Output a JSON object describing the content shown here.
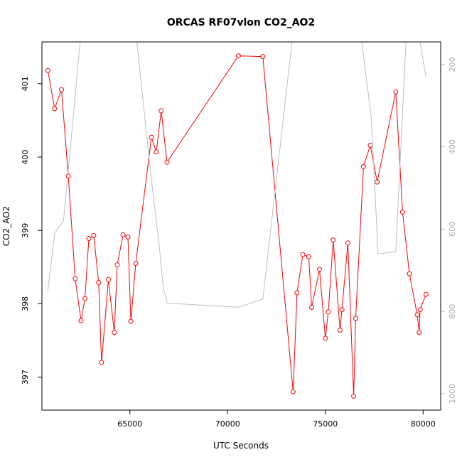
{
  "chart_data": {
    "type": "line",
    "title": "ORCAS RF07vlon CO2_AO2",
    "xlabel": "UTC Seconds",
    "ylabel": "CO2_AO2",
    "xlim": [
      60500,
      80900
    ],
    "ylim": [
      396.55,
      401.57
    ],
    "xticks": [
      65000,
      70000,
      75000,
      80000
    ],
    "yticks": [
      397,
      398,
      399,
      400,
      401
    ],
    "y2lim": [
      1040,
      145
    ],
    "y2ticks": [
      200,
      400,
      600,
      800,
      1000
    ],
    "grid": false,
    "colors": {
      "primary": "#ff0000",
      "secondary": "#bebebe",
      "axis": "#000000",
      "axis2": "#bebebe"
    },
    "series": [
      {
        "axis": "left",
        "color": "#ff0000",
        "x": [
          60800,
          61150,
          61500,
          61850,
          62200,
          62500,
          62700,
          62900,
          63150,
          63400,
          63550,
          63900,
          64200,
          64350,
          64650,
          64900,
          65050,
          65300,
          66100,
          66350,
          66600,
          66900,
          70550,
          71800,
          73350,
          73550,
          73850,
          74150,
          74300,
          74700,
          75000,
          75150,
          75400,
          75750,
          75850,
          76150,
          76450,
          76550,
          76950,
          77300,
          77650,
          78600,
          78950,
          79300,
          79700,
          79800,
          79850,
          80150
        ],
        "y": [
          401.18,
          400.66,
          400.92,
          399.74,
          398.34,
          397.77,
          398.07,
          398.89,
          398.93,
          398.29,
          397.2,
          398.33,
          397.61,
          398.53,
          398.94,
          398.91,
          397.76,
          398.55,
          400.27,
          400.07,
          400.63,
          399.93,
          401.38,
          401.37,
          396.8,
          398.15,
          398.67,
          398.64,
          397.95,
          398.47,
          397.53,
          397.89,
          398.87,
          397.64,
          397.92,
          398.83,
          396.74,
          397.8,
          399.87,
          400.16,
          399.66,
          400.89,
          399.25,
          398.41,
          397.85,
          397.61,
          397.92,
          398.13
        ]
      },
      {
        "axis": "right",
        "color": "#bebebe",
        "x": [
          60800,
          61150,
          61600,
          62000,
          62500,
          63500,
          64500,
          65300,
          66100,
          66500,
          66700,
          66900,
          70550,
          71800,
          73350,
          73850,
          74300,
          75000,
          75750,
          76250,
          76800,
          77350,
          77700,
          78600,
          79150,
          79750,
          80150
        ],
        "y": [
          750,
          610,
          580,
          380,
          120,
          120,
          120,
          120,
          480,
          640,
          740,
          780,
          790,
          770,
          120,
          120,
          120,
          120,
          120,
          120,
          120,
          330,
          660,
          655,
          120,
          120,
          230
        ]
      }
    ]
  }
}
